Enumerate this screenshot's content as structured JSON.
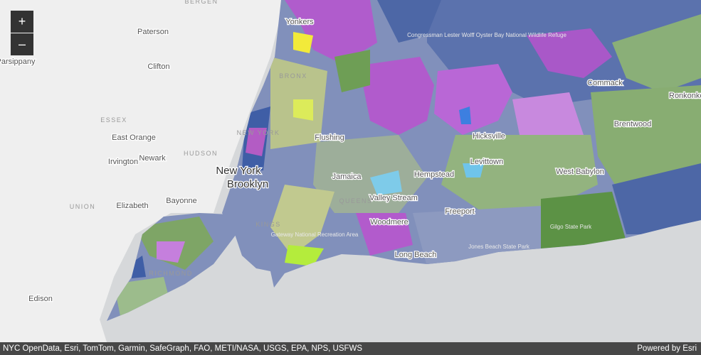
{
  "zoom": {
    "in": "+",
    "out": "–"
  },
  "places": [
    "Yonkers",
    "Paterson",
    "Clifton",
    "Parsippany",
    "East Orange",
    "Irvington",
    "Newark",
    "New York",
    "Brooklyn",
    "Bayonne",
    "Elizabeth",
    "Edison",
    "Flushing",
    "Jamaica",
    "Hempstead",
    "Hicksville",
    "Levittown",
    "Valley Stream",
    "Woodmere",
    "Freeport",
    "Long Beach",
    "Commack",
    "Brentwood",
    "West Babylon",
    "Ronkonkoma"
  ],
  "counties": [
    "BERGEN",
    "ESSEX",
    "HUDSON",
    "UNION",
    "NEW YORK",
    "BRONX",
    "QUEENS",
    "KINGS",
    "RICHMOND"
  ],
  "parks": [
    "Congressman Lester Wolff Oyster Bay National Wildlife Refuge",
    "Gateway National Recreation Area",
    "Jones Beach State Park",
    "Gilgo State Park"
  ],
  "attribution": "NYC OpenData, Esri, TomTom, Garmin, SafeGraph, FAO, METI/NASA, USGS, EPA, NPS, USFWS",
  "powered_by": "Powered by Esri"
}
